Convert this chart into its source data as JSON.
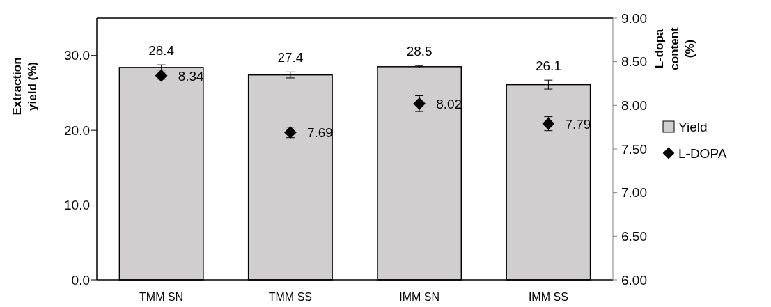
{
  "chart_data": {
    "type": "bar",
    "categories": [
      "TMM SN",
      "TMM SS",
      "IMM SN",
      "IMM SS"
    ],
    "series": [
      {
        "name": "Yield",
        "color": "#d0cece",
        "values": [
          28.4,
          27.4,
          28.5,
          26.1
        ],
        "errors": [
          0.35,
          0.4,
          0.15,
          0.6
        ]
      },
      {
        "name": "L-DOPA",
        "type": "scatter",
        "axis": "y2",
        "color": "#000000",
        "marker": "diamond",
        "values": [
          8.34,
          7.69,
          8.02,
          7.79
        ],
        "errors": [
          0.04,
          0.06,
          0.09,
          0.08
        ]
      }
    ],
    "ylabel": "Extraction yield (%)",
    "y2label": "L-dopa content (%)",
    "ylim": [
      0,
      35
    ],
    "yticks": [
      {
        "value": 0,
        "label": "0.0"
      },
      {
        "value": 10,
        "label": "10.0"
      },
      {
        "value": 20,
        "label": "20.0"
      },
      {
        "value": 30,
        "label": "30.0"
      }
    ],
    "y2lim": [
      6,
      9
    ],
    "y2ticks": [
      {
        "value": 6,
        "label": "6.00"
      },
      {
        "value": 6.5,
        "label": "6.50"
      },
      {
        "value": 7,
        "label": "7.00"
      },
      {
        "value": 7.5,
        "label": "7.50"
      },
      {
        "value": 8,
        "label": "8.00"
      },
      {
        "value": 8.5,
        "label": "8.50"
      },
      {
        "value": 9,
        "label": "9.00"
      }
    ],
    "data_labels": true,
    "legend": "right",
    "grid": false
  }
}
